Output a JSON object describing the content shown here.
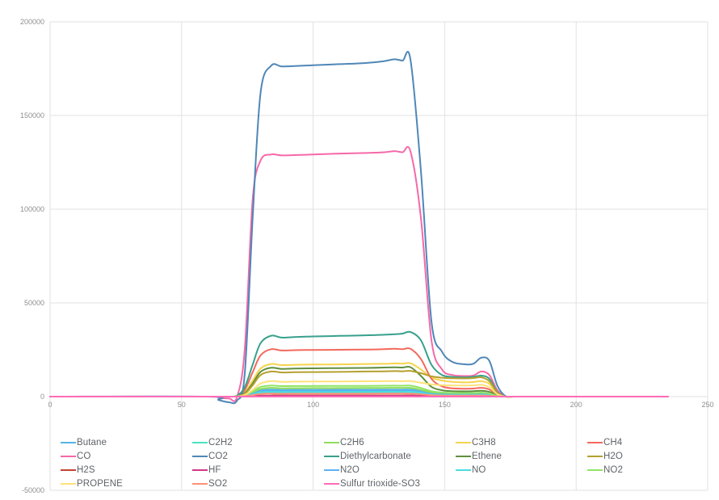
{
  "chart_data": {
    "type": "line",
    "title": "",
    "xlabel": "",
    "ylabel": "",
    "xlim": [
      0,
      250
    ],
    "ylim": [
      -50000,
      200000
    ],
    "x_ticks": [
      0,
      50,
      100,
      150,
      200,
      250
    ],
    "y_ticks": [
      -50000,
      0,
      50000,
      100000,
      150000,
      200000
    ],
    "grid": true,
    "legend_position": "bottom",
    "legend_columns": 5,
    "x_shared": [
      0,
      60,
      64,
      68,
      71,
      74,
      77,
      80,
      84,
      88,
      93,
      100,
      110,
      120,
      127,
      131,
      134,
      137,
      141,
      145,
      149,
      153,
      158,
      161,
      164,
      167,
      170,
      173,
      176
    ],
    "series": [
      {
        "name": "Butane",
        "color": "#56b3e8",
        "y": [
          0,
          0,
          0,
          0,
          50,
          450,
          1800,
          3300,
          3750,
          3550,
          3600,
          3600,
          3650,
          3650,
          3700,
          3700,
          3700,
          3750,
          2900,
          1800,
          1400,
          1250,
          1200,
          1250,
          1350,
          1050,
          250,
          0,
          0
        ]
      },
      {
        "name": "C2H2",
        "color": "#4be3c3",
        "y": [
          0,
          0,
          0,
          0,
          25,
          250,
          1000,
          1850,
          2100,
          2000,
          2020,
          2050,
          2050,
          2080,
          2100,
          2100,
          2100,
          2120,
          1600,
          950,
          720,
          650,
          630,
          650,
          720,
          550,
          120,
          0,
          0
        ]
      },
      {
        "name": "C2H6",
        "color": "#8ede5a",
        "y": [
          0,
          0,
          0,
          0,
          60,
          550,
          2200,
          4100,
          4700,
          4450,
          4500,
          4550,
          4550,
          4600,
          4650,
          4700,
          4650,
          4700,
          3600,
          2300,
          1850,
          1750,
          1700,
          1750,
          1850,
          1450,
          350,
          0,
          0
        ]
      },
      {
        "name": "C3H8",
        "color": "#f6d44c",
        "y": [
          0,
          0,
          0,
          0,
          200,
          2200,
          8500,
          15000,
          17400,
          16800,
          17000,
          17100,
          17200,
          17400,
          17500,
          17700,
          17600,
          17800,
          14500,
          10200,
          8600,
          7900,
          7600,
          7800,
          8200,
          6800,
          1800,
          0,
          0
        ]
      },
      {
        "name": "CH4",
        "color": "#f3685c",
        "y": [
          0,
          0,
          0,
          0,
          300,
          3500,
          13000,
          22000,
          25300,
          24600,
          24800,
          24900,
          25000,
          25100,
          25300,
          25500,
          25300,
          25500,
          20000,
          9500,
          5500,
          4400,
          4200,
          4300,
          4700,
          3800,
          900,
          0,
          0
        ]
      },
      {
        "name": "CO",
        "color": "#f668a8",
        "y": [
          0,
          0,
          -600,
          -1000,
          -400,
          25000,
          105000,
          126000,
          129200,
          128700,
          128900,
          129200,
          129700,
          130000,
          130400,
          131000,
          130400,
          130800,
          95000,
          30000,
          14500,
          11500,
          11000,
          11300,
          13400,
          11500,
          3500,
          200,
          0
        ]
      },
      {
        "name": "CO2",
        "color": "#4f87b7",
        "y": [
          0,
          0,
          -1800,
          -3000,
          -2200,
          12000,
          95000,
          162000,
          176500,
          176200,
          176400,
          176800,
          177400,
          178000,
          179000,
          180000,
          179300,
          179800,
          120000,
          40000,
          24000,
          18500,
          17200,
          17600,
          20800,
          19000,
          6000,
          400,
          0
        ]
      },
      {
        "name": "Diethylcarbonate",
        "color": "#38a08c",
        "y": [
          0,
          0,
          0,
          0,
          500,
          5000,
          17000,
          28500,
          32500,
          31500,
          31800,
          32100,
          32400,
          32700,
          33000,
          33300,
          33600,
          34500,
          30000,
          17000,
          11500,
          10500,
          10300,
          10600,
          11200,
          9500,
          2500,
          100,
          0
        ]
      },
      {
        "name": "Ethene",
        "color": "#5f8f3e",
        "y": [
          0,
          0,
          0,
          0,
          150,
          1800,
          7000,
          13200,
          15400,
          14800,
          15000,
          15100,
          15200,
          15300,
          15500,
          15600,
          15500,
          15700,
          11000,
          5200,
          3400,
          2900,
          2800,
          2900,
          3100,
          2500,
          600,
          0,
          0
        ]
      },
      {
        "name": "H2O",
        "color": "#b5a02f",
        "y": [
          0,
          0,
          0,
          0,
          150,
          1500,
          6000,
          11500,
          13400,
          12900,
          13000,
          13100,
          13200,
          13400,
          13500,
          13600,
          13500,
          13700,
          12500,
          10800,
          10100,
          9800,
          9700,
          9900,
          10300,
          8200,
          2200,
          100,
          0
        ]
      },
      {
        "name": "H2S",
        "color": "#c44432",
        "y": [
          0,
          0,
          0,
          0,
          10,
          80,
          300,
          550,
          620,
          590,
          600,
          600,
          610,
          610,
          620,
          620,
          620,
          630,
          480,
          300,
          230,
          210,
          200,
          210,
          230,
          180,
          40,
          0,
          0
        ]
      },
      {
        "name": "HF",
        "color": "#d23884",
        "y": [
          0,
          0,
          0,
          0,
          8,
          60,
          220,
          400,
          450,
          430,
          435,
          440,
          445,
          450,
          450,
          455,
          450,
          455,
          350,
          220,
          170,
          155,
          150,
          155,
          170,
          130,
          30,
          0,
          0
        ]
      },
      {
        "name": "N2O",
        "color": "#5ab1f2",
        "y": [
          0,
          0,
          0,
          0,
          40,
          380,
          1500,
          2750,
          3100,
          2950,
          3000,
          3000,
          3050,
          3050,
          3100,
          3100,
          3100,
          3150,
          2400,
          1500,
          1150,
          1050,
          1000,
          1050,
          1150,
          900,
          200,
          0,
          0
        ]
      },
      {
        "name": "NO",
        "color": "#49dede",
        "y": [
          0,
          0,
          0,
          0,
          30,
          300,
          1200,
          2250,
          2550,
          2450,
          2480,
          2500,
          2500,
          2550,
          2550,
          2600,
          2550,
          2600,
          2000,
          1200,
          900,
          820,
          800,
          820,
          900,
          700,
          150,
          0,
          0
        ]
      },
      {
        "name": "NO2",
        "color": "#90e467",
        "y": [
          0,
          0,
          0,
          0,
          80,
          700,
          2800,
          5200,
          5900,
          5600,
          5650,
          5700,
          5700,
          5750,
          5800,
          5850,
          5800,
          5850,
          4600,
          2900,
          2200,
          2000,
          1950,
          2000,
          2150,
          1700,
          400,
          0,
          0
        ]
      },
      {
        "name": "PROPENE",
        "color": "#ffe27a",
        "y": [
          0,
          0,
          0,
          0,
          100,
          900,
          3500,
          7000,
          8300,
          7900,
          8000,
          8050,
          8100,
          8200,
          8250,
          8300,
          8250,
          8300,
          7400,
          6500,
          6100,
          5950,
          5900,
          6000,
          6300,
          5000,
          1300,
          0,
          0
        ]
      },
      {
        "name": "SO2",
        "color": "#ff8f78",
        "y": [
          0,
          0,
          0,
          0,
          20,
          200,
          800,
          1400,
          1600,
          1520,
          1540,
          1550,
          1560,
          1570,
          1580,
          1600,
          1580,
          1600,
          1250,
          780,
          600,
          550,
          530,
          550,
          600,
          450,
          100,
          0,
          0
        ]
      },
      {
        "name": "Sulfur trioxide-SO3",
        "color": "#ff6cb7",
        "x": [
          0,
          235
        ],
        "y": [
          0,
          0
        ]
      }
    ]
  },
  "colors": {
    "background": "#ffffff",
    "grid": "#e2e2e2",
    "tick_label": "#8f8f8f",
    "legend_label": "#5f6368"
  }
}
